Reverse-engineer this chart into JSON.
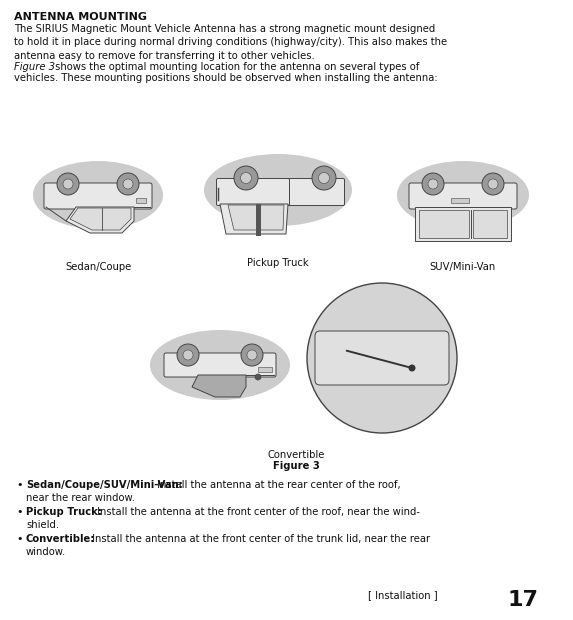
{
  "page_bg": "#ffffff",
  "title": "ANTENNA MOUNTING",
  "line1": "The SIRIUS Magnetic Mount Vehicle Antenna has a strong magnetic mount designed",
  "line2": "to hold it in place during normal driving conditions (highway/city). This also makes the",
  "line3": "antenna easy to remove for transferring it to other vehicles.",
  "line4_italic": "Figure 3",
  "line4_rest": " shows the optimal mounting location for the antenna on several types of",
  "line5": "vehicles. These mounting positions should be observed when installing the antenna:",
  "label1": "Sedan/Coupe",
  "label2": "Pickup Truck",
  "label3": "SUV/Mini-Van",
  "label4": "Convertible",
  "figure_label": "Figure 3",
  "b1_bold": "Sedan/Coupe/SUV/Mini-Van:",
  "b1_l1": " Install the antenna at the rear center of the roof,",
  "b1_l2": "near the rear window.",
  "b2_bold": "Pickup Truck:",
  "b2_l1": " Install the antenna at the front center of the roof, near the wind-",
  "b2_l2": "shield.",
  "b3_bold": "Convertible:",
  "b3_l1": " Install the antenna at the front center of the trunk lid, near the rear",
  "b3_l2": "window.",
  "footer": "[ Installation ]",
  "footer_num": "17",
  "ellipse_color": "#cccccc",
  "car_fill": "#e8e8e8",
  "car_edge": "#444444",
  "wheel_fill": "#999999",
  "wheel_inner": "#cccccc",
  "antenna_fill": "#555555",
  "zoom_circle_fill": "#d4d4d4",
  "trunk_fill": "#e0e0e0"
}
